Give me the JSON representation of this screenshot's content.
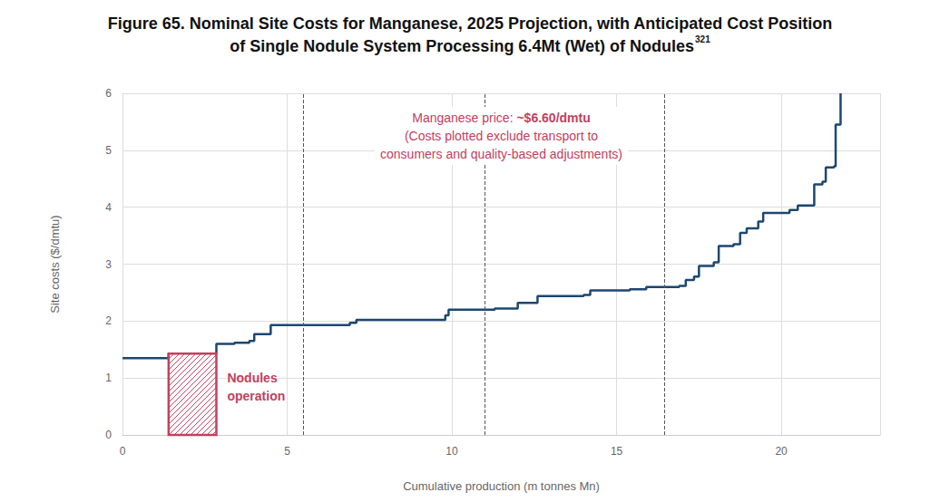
{
  "chart_data": {
    "type": "line",
    "title": "Figure 65. Nominal Site Costs for Manganese, 2025 Projection, with Anticipated Cost Position\nof Single Nodule System Processing 6.4Mt (Wet) of Nodules",
    "title_note": "321",
    "x_label": "Cumulative production (m tonnes Mn)",
    "y_label": "Site costs ($/dmtu)",
    "x": [
      0,
      1.4,
      2.85,
      3.4,
      3.85,
      4.0,
      4.5,
      6.9,
      7.1,
      9.8,
      9.9,
      11.3,
      12.0,
      12.6,
      14.0,
      14.2,
      15.4,
      15.9,
      16.9,
      17.1,
      17.35,
      17.5,
      17.95,
      18.1,
      18.55,
      18.75,
      18.95,
      19.3,
      19.45,
      20.25,
      20.5,
      21.0,
      21.25,
      21.35,
      21.6,
      21.65,
      21.8
    ],
    "values": [
      1.35,
      1.43,
      1.6,
      1.62,
      1.65,
      1.77,
      1.93,
      1.97,
      2.02,
      2.1,
      2.2,
      2.22,
      2.32,
      2.44,
      2.46,
      2.54,
      2.56,
      2.6,
      2.62,
      2.72,
      2.78,
      2.97,
      3.03,
      3.32,
      3.35,
      3.55,
      3.63,
      3.75,
      3.9,
      3.95,
      4.03,
      4.4,
      4.45,
      4.7,
      4.72,
      5.45,
      6.0
    ],
    "color": "#1d4770",
    "line_style": "step",
    "xlim": [
      0,
      23
    ],
    "xticks": [
      0,
      5,
      10,
      15,
      20
    ],
    "ylim": [
      0,
      6
    ],
    "yticks": [
      0,
      1,
      2,
      3,
      4,
      5,
      6
    ],
    "grid": true,
    "vlines": [
      5.5,
      11,
      16.45
    ],
    "annotation": {
      "label": "Manganese price: ",
      "price": "~$6.60/dmtu",
      "note": [
        "(Costs plotted exclude transport to",
        "consumers and quality-based adjustments)"
      ],
      "color": "#c2405e"
    },
    "highlight": {
      "label": "Nodules operation",
      "x": [
        1.4,
        2.85
      ],
      "cost": 1.43,
      "color": "#c2405e"
    }
  }
}
